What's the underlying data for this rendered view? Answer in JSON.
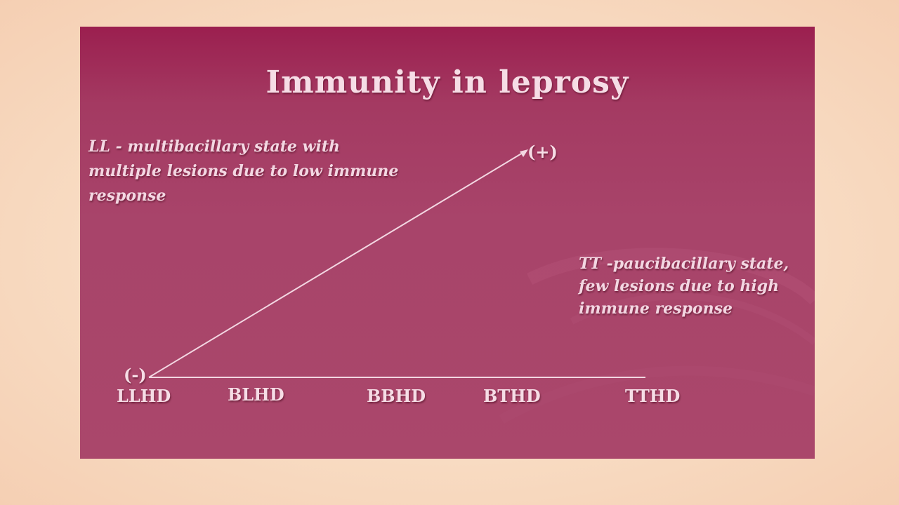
{
  "slide": {
    "title": "Immunity in leprosy",
    "notes": {
      "ll": "LL - multibacillary state with multiple lesions due to low immune response",
      "tt": "TT -paucibacillary state, few lesions due to high immune response"
    },
    "axis": {
      "start_marker": "(-)",
      "end_marker": "(+)",
      "categories": [
        "LLHD",
        "BLHD",
        "BBHD",
        "BTHD",
        "TTHD"
      ]
    }
  },
  "colors": {
    "slide_background": "#a8446a",
    "slide_top": "#9b1f4f",
    "text": "#f6dde6",
    "line": "#f3d7e2",
    "page_background": "#f8dcc3"
  }
}
